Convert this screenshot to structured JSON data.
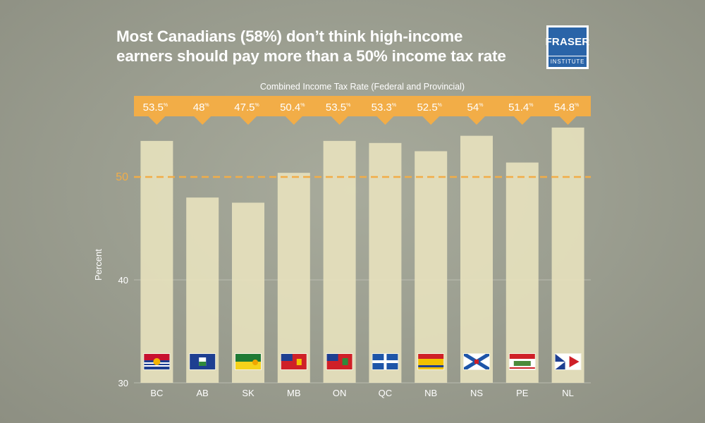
{
  "header": {
    "title_line1": "Most Canadians (58%) don’t think high-income",
    "title_line2": "earners should pay more than a 50% income tax rate",
    "logo_top": "FRASER",
    "logo_bottom": "INSTITUTE"
  },
  "colors": {
    "banner": "#f2ad47",
    "bar": "#e6e1bd",
    "threshold": "#f2ad47",
    "label_text": "#ffffff"
  },
  "chart_data": {
    "type": "bar",
    "title": "Combined Income Tax Rate (Federal and Provincial)",
    "xlabel": "",
    "ylabel": "Percent",
    "categories": [
      "BC",
      "AB",
      "SK",
      "MB",
      "ON",
      "QC",
      "NB",
      "NS",
      "PE",
      "NL"
    ],
    "values": [
      53.5,
      48,
      47.5,
      50.4,
      53.5,
      53.3,
      52.5,
      54,
      51.4,
      54.8
    ],
    "value_labels": [
      "53.5",
      "48",
      "47.5",
      "50.4",
      "53.5",
      "53.3",
      "52.5",
      "54",
      "51.4",
      "54.8"
    ],
    "value_suffix": "%",
    "ylim": [
      30,
      56
    ],
    "yticks": [
      30,
      40,
      50
    ],
    "threshold": 50,
    "threshold_label": "50",
    "grid": true,
    "flags": [
      "bc-flag-icon",
      "ab-flag-icon",
      "sk-flag-icon",
      "mb-flag-icon",
      "on-flag-icon",
      "qc-flag-icon",
      "nb-flag-icon",
      "ns-flag-icon",
      "pe-flag-icon",
      "nl-flag-icon"
    ]
  }
}
